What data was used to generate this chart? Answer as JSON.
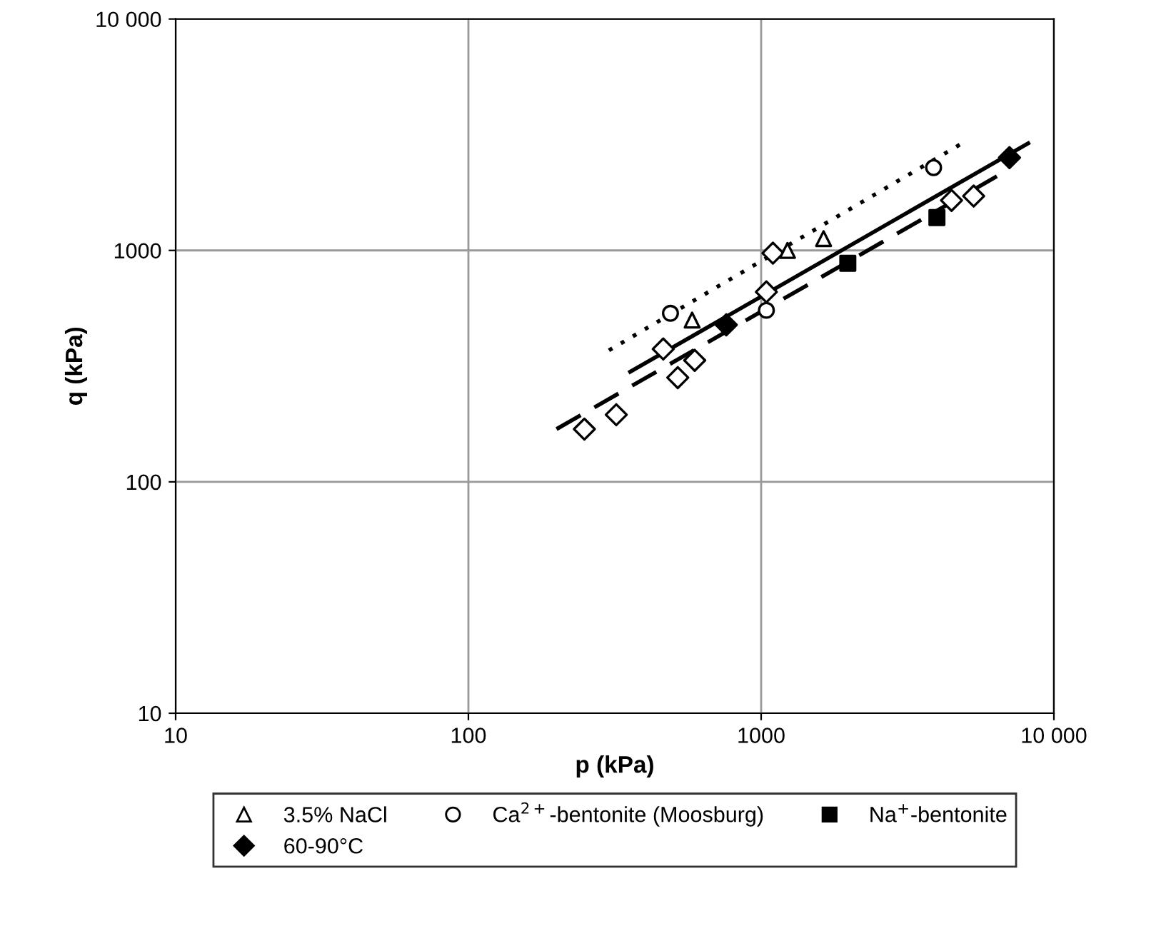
{
  "chart_data": {
    "type": "scatter",
    "xlabel": "p (kPa)",
    "ylabel": "q (kPa)",
    "log": "xy",
    "xlim": [
      10,
      10000
    ],
    "ylim": [
      10,
      10000
    ],
    "xticks": [
      10,
      100,
      1000,
      {
        "value": 10000,
        "label": "10 000"
      }
    ],
    "yticks": [
      10,
      100,
      1000,
      {
        "value": 10000,
        "label": "10 000"
      }
    ],
    "grid": true,
    "legend": "bottom",
    "series": [
      {
        "color": "#ffffff",
        "marker": "diamond",
        "x": [
          249,
          320,
          463,
          519,
          593,
          1042,
          1097,
          4470,
          5320
        ],
        "values": [
          169,
          195,
          375,
          282,
          335,
          662,
          973,
          1645,
          1718
        ]
      },
      {
        "name": "3.5% NaCl",
        "color": "#ffffff",
        "marker": "triangle",
        "x": [
          581,
          1230,
          1634
        ],
        "values": [
          500,
          1000,
          1125
        ]
      },
      {
        "name": "60-90°C",
        "color": "#000000",
        "marker": "diamond",
        "x": [
          760,
          7050
        ],
        "values": [
          477,
          2518
        ]
      },
      {
        "name": "Ca$^{2+}$-bentonite (Moosburg)",
        "color": "#ffffff",
        "marker": "circle",
        "x": [
          490,
          1042,
          3882
        ],
        "values": [
          535,
          551,
          2280
        ]
      },
      {
        "name": "Na$^{+}$-bentonite",
        "color": "#000000",
        "marker": "square",
        "x": [
          1977,
          3985
        ],
        "values": [
          880,
          1387
        ]
      },
      {
        "type": "line",
        "color": "#000000",
        "line_style": "solid",
        "x": [
          357,
          8170
        ],
        "values": [
          299,
          2904
        ]
      },
      {
        "type": "line",
        "color": "#000000",
        "line_style": "dashed",
        "x": [
          200,
          6520
        ],
        "values": [
          169,
          2123
        ]
      },
      {
        "type": "line",
        "color": "#000000",
        "line_style": "dotted",
        "x": [
          302,
          4860
        ],
        "values": [
          370,
          2904
        ]
      }
    ]
  }
}
